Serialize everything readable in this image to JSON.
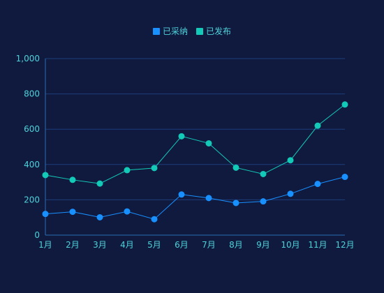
{
  "chart_data": {
    "type": "line",
    "title": "",
    "xlabel": "",
    "ylabel": "",
    "categories": [
      "1月",
      "2月",
      "3月",
      "4月",
      "5月",
      "6月",
      "7月",
      "8月",
      "9月",
      "10月",
      "11月",
      "12月"
    ],
    "ylim": [
      0,
      1000
    ],
    "yticks": [
      "0",
      "200",
      "400",
      "600",
      "800",
      "1,000"
    ],
    "series": [
      {
        "name": "已采纳",
        "color": "#1890ff",
        "values": [
          120,
          132,
          101,
          134,
          90,
          230,
          210,
          182,
          191,
          234,
          290,
          330
        ]
      },
      {
        "name": "已发布",
        "color": "#13c9b8",
        "values": [
          340,
          313,
          292,
          368,
          380,
          560,
          520,
          382,
          346,
          424,
          620,
          740
        ]
      }
    ],
    "grid": true,
    "legend_position": "top-center"
  }
}
